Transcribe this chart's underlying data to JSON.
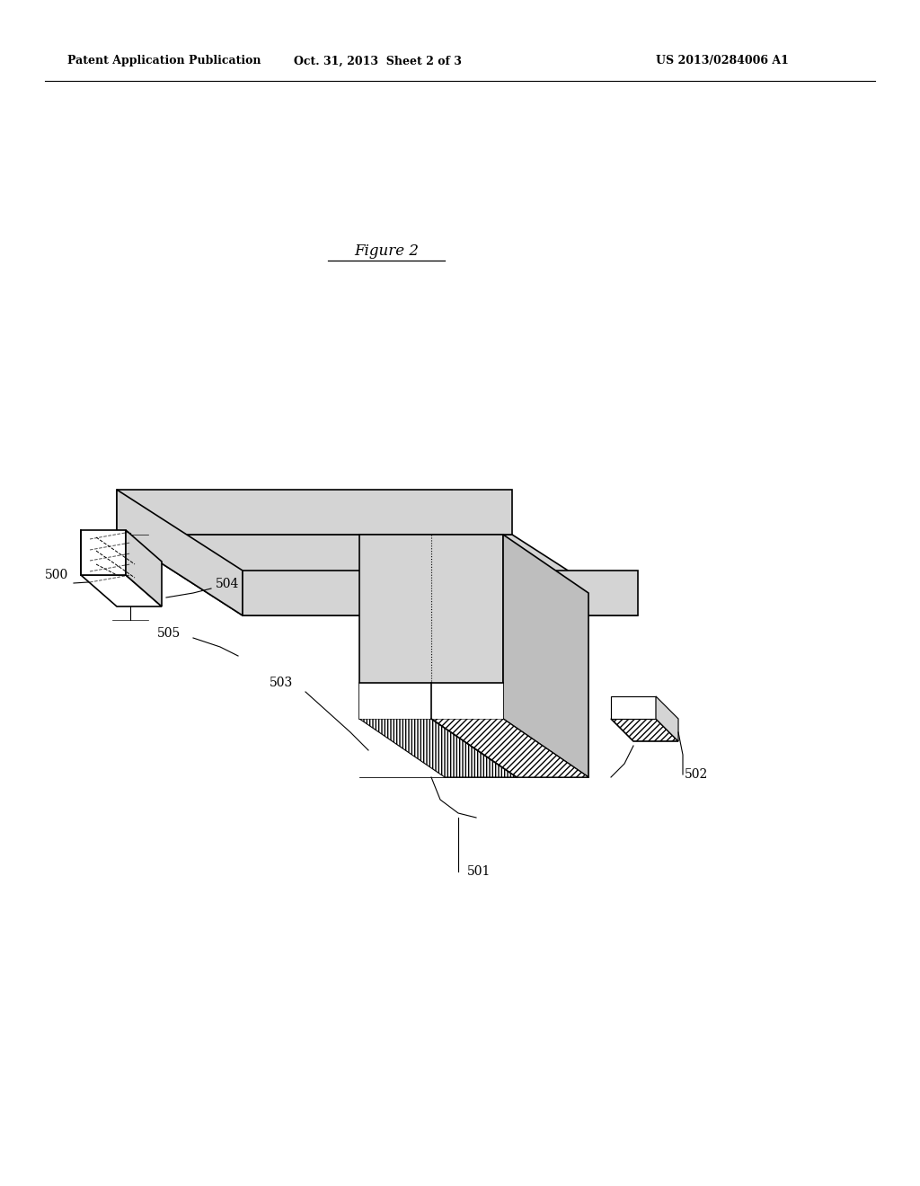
{
  "bg_color": "#ffffff",
  "header_left": "Patent Application Publication",
  "header_mid": "Oct. 31, 2013  Sheet 2 of 3",
  "header_right": "US 2013/0284006 A1",
  "figure_label": "Figure 2",
  "fill_color_light": "#d4d4d4",
  "fill_color_right": "#bebebe",
  "line_color": "#000000",
  "line_width": 1.2,
  "dashed_lw": 0.8,
  "label_fontsize": 10,
  "header_fontsize": 9,
  "figure_fontsize": 12
}
